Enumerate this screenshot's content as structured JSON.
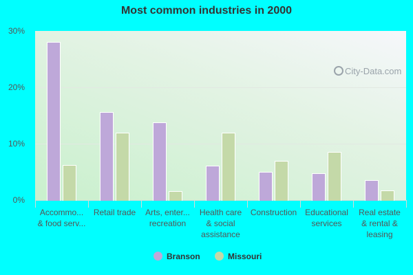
{
  "title": "Most common industries in 2000",
  "watermark": "City-Data.com",
  "colors": {
    "Branson": "#bea8d9",
    "Missouri": "#c4d9a8",
    "background": "#00ffff"
  },
  "legend": [
    {
      "name": "Branson",
      "color": "#bea8d9"
    },
    {
      "name": "Missouri",
      "color": "#c4d9a8"
    }
  ],
  "y_ticks": [
    "0%",
    "10%",
    "20%",
    "30%"
  ],
  "chart_data": {
    "type": "bar",
    "title": "Most common industries in 2000",
    "xlabel": "",
    "ylabel": "",
    "ylim": [
      0,
      30
    ],
    "y_ticks": [
      0,
      10,
      20,
      30
    ],
    "y_tick_labels": [
      "0%",
      "10%",
      "20%",
      "30%"
    ],
    "grid": true,
    "legend_position": "bottom",
    "categories": [
      "Accommo... & food serv...",
      "Retail trade",
      "Arts, enter... recreation",
      "Health care & social assistance",
      "Construction",
      "Educational services",
      "Real estate & rental & leasing"
    ],
    "category_lines": [
      [
        "Accommo...",
        "& food serv..."
      ],
      [
        "Retail trade"
      ],
      [
        "Arts, enter...",
        "recreation"
      ],
      [
        "Health care",
        "& social",
        "assistance"
      ],
      [
        "Construction"
      ],
      [
        "Educational",
        "services"
      ],
      [
        "Real estate",
        "& rental &",
        "leasing"
      ]
    ],
    "series": [
      {
        "name": "Branson",
        "values": [
          28.0,
          15.6,
          13.8,
          6.1,
          5.0,
          4.7,
          3.5
        ]
      },
      {
        "name": "Missouri",
        "values": [
          6.2,
          11.9,
          1.6,
          11.9,
          6.9,
          8.5,
          1.7
        ]
      }
    ]
  }
}
